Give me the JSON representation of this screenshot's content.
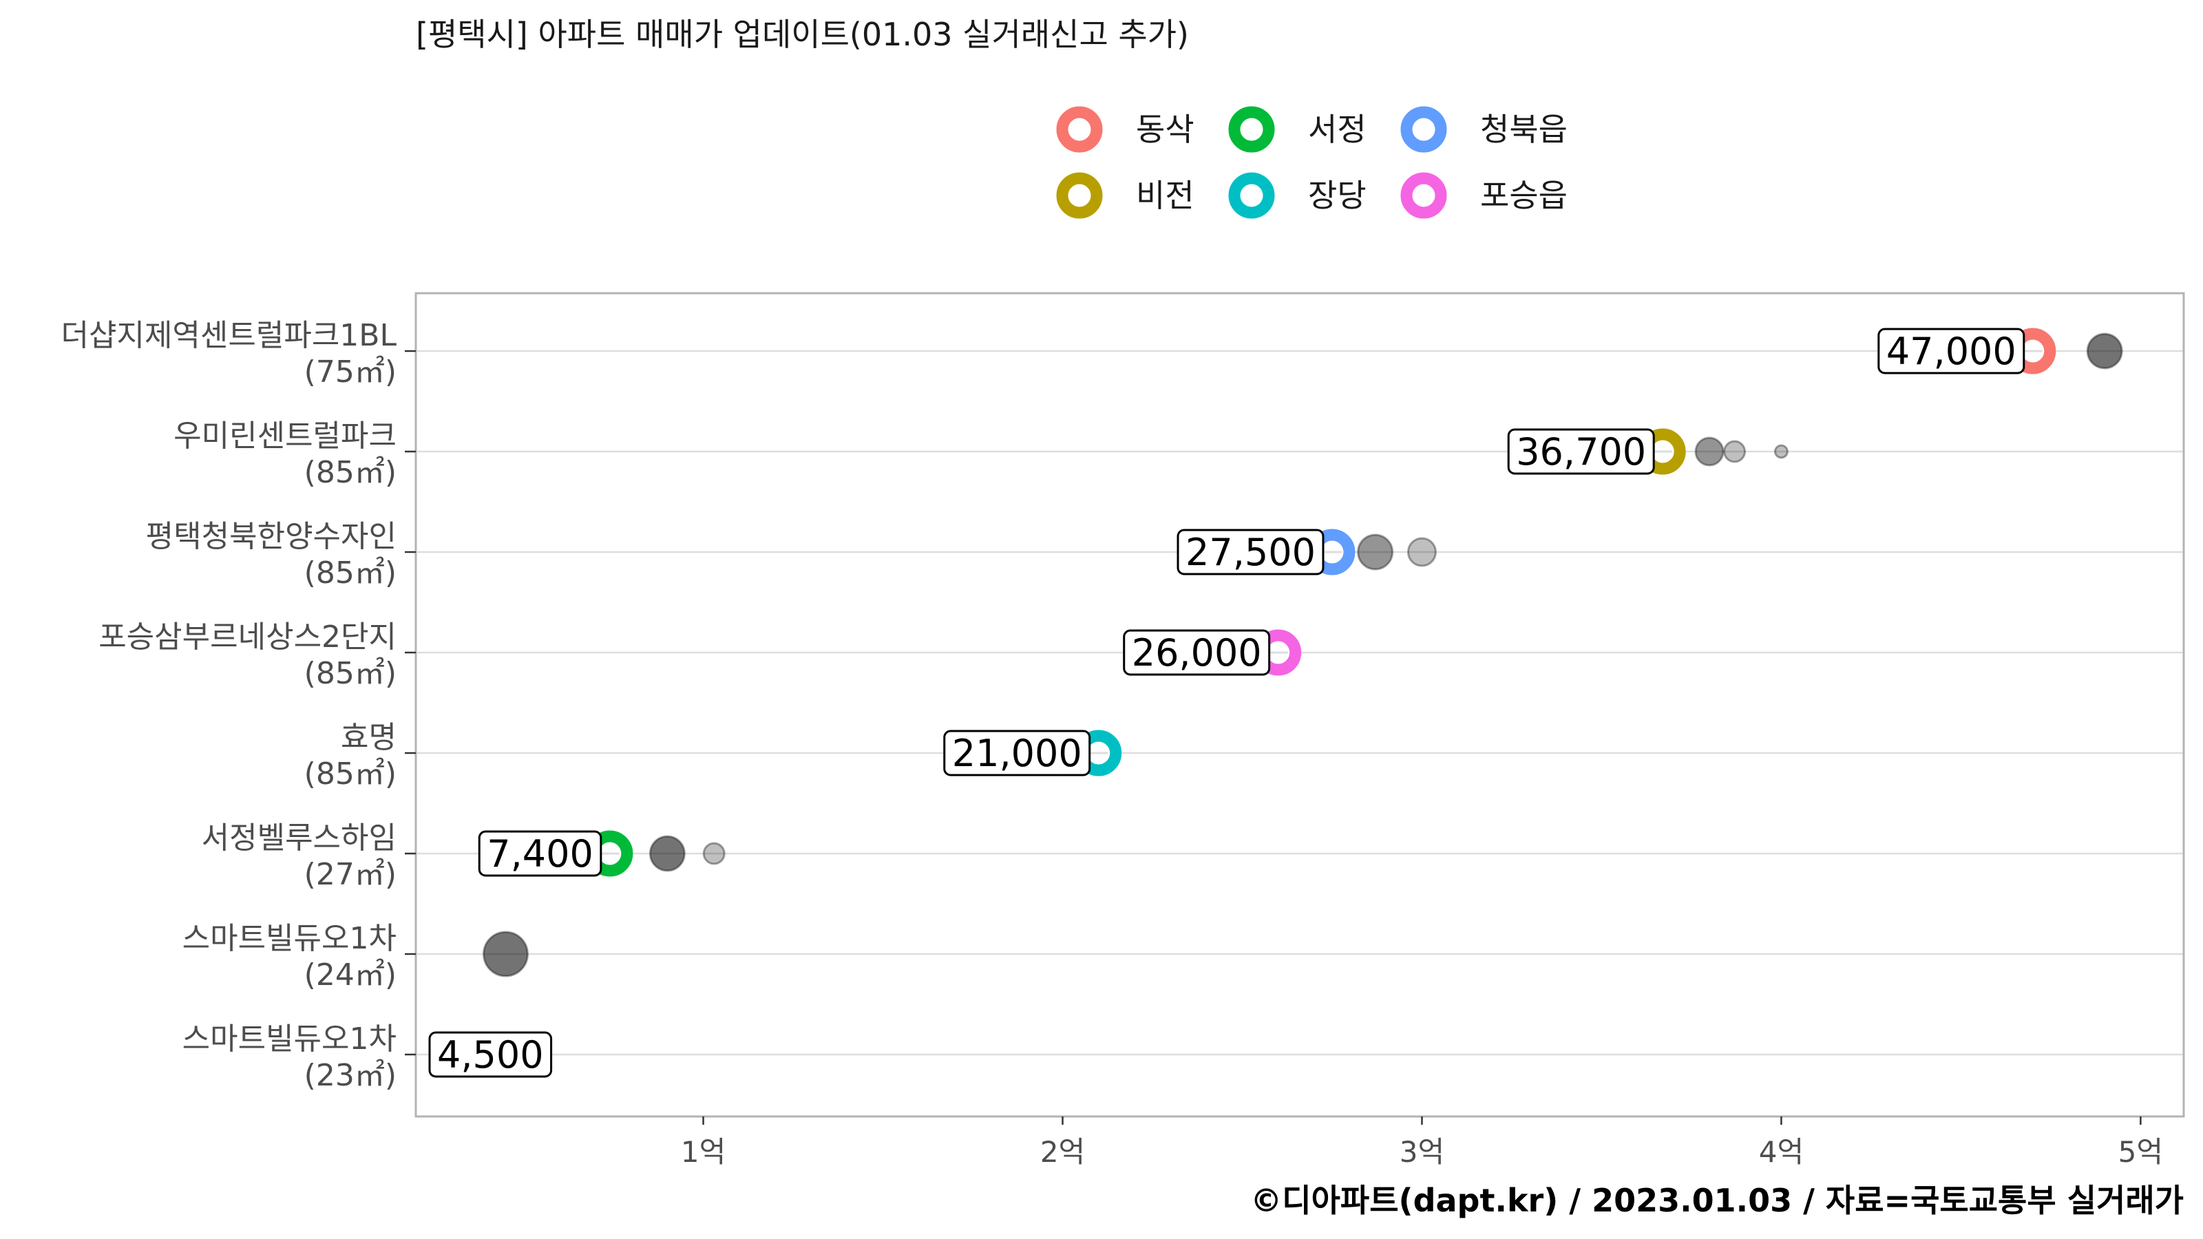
{
  "chart_data": {
    "type": "scatter",
    "title": "[평택시] 아파트 매매가 업데이트(01.03 실거래신고 추가)",
    "caption": "©디아파트(dapt.kr) / 2023.01.03 / 자료=국토교통부 실거래가",
    "x_unit": "만원",
    "xlim": [
      2000,
      51200
    ],
    "x_ticks": [
      {
        "value": 10000,
        "label": "1억"
      },
      {
        "value": 20000,
        "label": "2억"
      },
      {
        "value": 30000,
        "label": "3억"
      },
      {
        "value": 40000,
        "label": "4억"
      },
      {
        "value": 50000,
        "label": "5억"
      }
    ],
    "grid": true,
    "legend": {
      "position": "top",
      "entries": [
        {
          "name": "동삭",
          "color": "#F8766D"
        },
        {
          "name": "서정",
          "color": "#00BA38"
        },
        {
          "name": "청북읍",
          "color": "#619CFF"
        },
        {
          "name": "비전",
          "color": "#B79F00"
        },
        {
          "name": "장당",
          "color": "#00BFC4"
        },
        {
          "name": "포승읍",
          "color": "#F564E3"
        }
      ]
    },
    "categories": [
      {
        "name": "더샵지제역센트럴파크1BL",
        "area": "(75㎡)",
        "dong": "동삭",
        "latest": 47000,
        "label": "47,000",
        "prev": [
          {
            "value": 49000,
            "size": "large",
            "shade": "dark"
          }
        ]
      },
      {
        "name": "우미린센트럴파크",
        "area": "(85㎡)",
        "dong": "비전",
        "latest": 36700,
        "label": "36,700",
        "prev": [
          {
            "value": 38000,
            "size": "medium",
            "shade": "medium"
          },
          {
            "value": 38700,
            "size": "small",
            "shade": "light"
          },
          {
            "value": 40000,
            "size": "tiny",
            "shade": "light"
          }
        ]
      },
      {
        "name": "평택청북한양수자인",
        "area": "(85㎡)",
        "dong": "청북읍",
        "latest": 27500,
        "label": "27,500",
        "prev": [
          {
            "value": 28700,
            "size": "large",
            "shade": "medium"
          },
          {
            "value": 30000,
            "size": "medium",
            "shade": "light"
          }
        ]
      },
      {
        "name": "포승삼부르네상스2단지",
        "area": "(85㎡)",
        "dong": "포승읍",
        "latest": 26000,
        "label": "26,000",
        "prev": []
      },
      {
        "name": "효명",
        "area": "(85㎡)",
        "dong": "장당",
        "latest": 21000,
        "label": "21,000",
        "prev": []
      },
      {
        "name": "서정벨루스하임",
        "area": "(27㎡)",
        "dong": "서정",
        "latest": 7400,
        "label": "7,400",
        "prev": [
          {
            "value": 9000,
            "size": "large",
            "shade": "dark"
          },
          {
            "value": 10300,
            "size": "small",
            "shade": "light"
          }
        ]
      },
      {
        "name": "스마트빌듀오1차",
        "area": "(24㎡)",
        "dong": "",
        "latest": null,
        "label": "",
        "prev": [
          {
            "value": 4500,
            "size": "xlarge",
            "shade": "dark"
          }
        ]
      },
      {
        "name": "스마트빌듀오1차",
        "area": "(23㎡)",
        "dong": "",
        "latest": 4500,
        "label": "4,500",
        "prev": []
      }
    ]
  }
}
